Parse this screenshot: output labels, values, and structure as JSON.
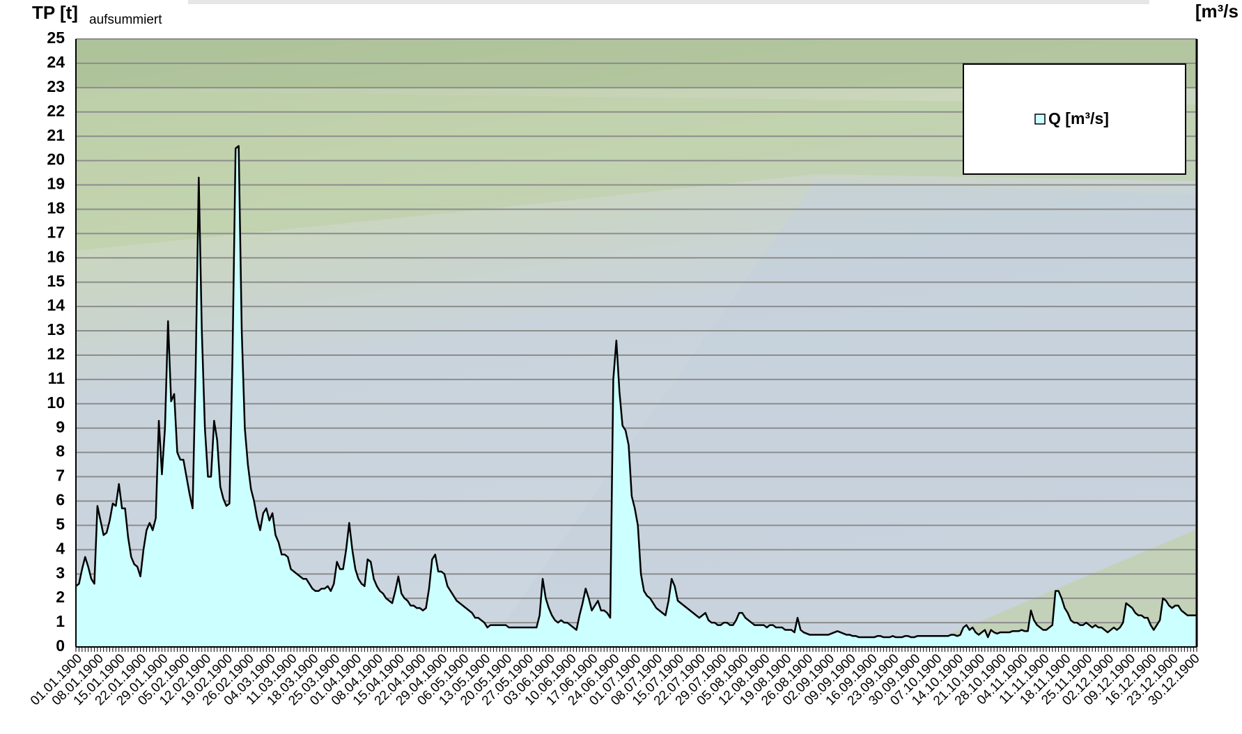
{
  "chart_data": {
    "type": "area",
    "y_label": "TP [t]",
    "y_label_sub": "aufsummiert",
    "y2_label": "[m³/s",
    "categories": [
      "01.01.1900",
      null,
      null,
      null,
      null,
      null,
      null,
      "08.01.1900",
      null,
      null,
      null,
      null,
      null,
      null,
      "15.01.1900",
      null,
      null,
      null,
      null,
      null,
      null,
      "22.01.1900",
      null,
      null,
      null,
      null,
      null,
      null,
      "29.01.1900",
      null,
      null,
      null,
      null,
      null,
      null,
      "05.02.1900",
      null,
      null,
      null,
      null,
      null,
      null,
      "12.02.1900",
      null,
      null,
      null,
      null,
      null,
      null,
      "19.02.1900",
      null,
      null,
      null,
      null,
      null,
      null,
      "26.02.1900",
      null,
      null,
      null,
      null,
      null,
      null,
      "04.03.1900",
      null,
      null,
      null,
      null,
      null,
      null,
      "11.03.1900",
      null,
      null,
      null,
      null,
      null,
      null,
      "18.03.1900",
      null,
      null,
      null,
      null,
      null,
      null,
      "25.03.1900",
      null,
      null,
      null,
      null,
      null,
      null,
      "01.04.1900",
      null,
      null,
      null,
      null,
      null,
      null,
      "08.04.1900",
      null,
      null,
      null,
      null,
      null,
      null,
      "15.04.1900",
      null,
      null,
      null,
      null,
      null,
      null,
      "22.04.1900",
      null,
      null,
      null,
      null,
      null,
      null,
      "29.04.1900",
      null,
      null,
      null,
      null,
      null,
      null,
      "06.05.1900",
      null,
      null,
      null,
      null,
      null,
      null,
      "13.05.1900",
      null,
      null,
      null,
      null,
      null,
      null,
      "20.05.1900",
      null,
      null,
      null,
      null,
      null,
      null,
      "27.05.1900",
      null,
      null,
      null,
      null,
      null,
      null,
      "03.06.1900",
      null,
      null,
      null,
      null,
      null,
      null,
      "10.06.1900",
      null,
      null,
      null,
      null,
      null,
      null,
      "17.06.1900",
      null,
      null,
      null,
      null,
      null,
      null,
      "24.06.1900",
      null,
      null,
      null,
      null,
      null,
      null,
      "01.07.1900",
      null,
      null,
      null,
      null,
      null,
      null,
      "08.07.1900",
      null,
      null,
      null,
      null,
      null,
      null,
      "15.07.1900",
      null,
      null,
      null,
      null,
      null,
      null,
      "22.07.1900",
      null,
      null,
      null,
      null,
      null,
      null,
      "29.07.1900",
      null,
      null,
      null,
      null,
      null,
      null,
      "05.08.1900",
      null,
      null,
      null,
      null,
      null,
      null,
      "12.08.1900",
      null,
      null,
      null,
      null,
      null,
      null,
      "19.08.1900",
      null,
      null,
      null,
      null,
      null,
      null,
      "26.08.1900",
      null,
      null,
      null,
      null,
      null,
      null,
      "02.09.1900",
      null,
      null,
      null,
      null,
      null,
      null,
      "09.09.1900",
      null,
      null,
      null,
      null,
      null,
      null,
      "16.09.1900",
      null,
      null,
      null,
      null,
      null,
      null,
      "23.09.1900",
      null,
      null,
      null,
      null,
      null,
      null,
      "30.09.1900",
      null,
      null,
      null,
      null,
      null,
      null,
      "07.10.1900",
      null,
      null,
      null,
      null,
      null,
      null,
      "14.10.1900",
      null,
      null,
      null,
      null,
      null,
      null,
      "21.10.1900",
      null,
      null,
      null,
      null,
      null,
      null,
      "28.10.1900",
      null,
      null,
      null,
      null,
      null,
      null,
      "04.11.1900",
      null,
      null,
      null,
      null,
      null,
      null,
      "11.11.1900",
      null,
      null,
      null,
      null,
      null,
      null,
      "18.11.1900",
      null,
      null,
      null,
      null,
      null,
      null,
      "25.11.1900",
      null,
      null,
      null,
      null,
      null,
      null,
      "02.12.1900",
      null,
      null,
      null,
      null,
      null,
      null,
      "09.12.1900",
      null,
      null,
      null,
      null,
      null,
      null,
      "16.12.1900",
      null,
      null,
      null,
      null,
      null,
      null,
      "23.12.1900",
      null,
      null,
      null,
      null,
      null,
      null,
      "30.12.1900",
      null
    ],
    "series": [
      {
        "name": "Q [m³/s]",
        "color": "#ccffff",
        "values": [
          2.5,
          2.6,
          3.2,
          3.7,
          3.3,
          2.8,
          2.6,
          5.8,
          5.2,
          4.6,
          4.7,
          5.2,
          5.9,
          5.8,
          6.7,
          5.7,
          5.7,
          4.5,
          3.7,
          3.4,
          3.3,
          2.9,
          4.0,
          4.8,
          5.1,
          4.8,
          5.3,
          9.3,
          7.1,
          9.0,
          13.4,
          10.1,
          10.4,
          8.0,
          7.7,
          7.7,
          7.0,
          6.3,
          5.7,
          11.5,
          19.3,
          13.0,
          9.0,
          7.0,
          7.0,
          9.3,
          8.5,
          6.6,
          6.1,
          5.8,
          5.9,
          12.0,
          20.5,
          20.6,
          13.0,
          9.0,
          7.5,
          6.5,
          6.0,
          5.3,
          4.8,
          5.5,
          5.7,
          5.2,
          5.5,
          4.6,
          4.3,
          3.8,
          3.8,
          3.7,
          3.2,
          3.1,
          3.0,
          2.9,
          2.8,
          2.8,
          2.6,
          2.4,
          2.3,
          2.3,
          2.4,
          2.4,
          2.5,
          2.3,
          2.6,
          3.5,
          3.2,
          3.2,
          4.0,
          5.1,
          4.0,
          3.2,
          2.8,
          2.6,
          2.5,
          3.6,
          3.5,
          2.8,
          2.5,
          2.3,
          2.2,
          2.0,
          1.9,
          1.8,
          2.3,
          2.9,
          2.2,
          2.0,
          1.9,
          1.7,
          1.7,
          1.6,
          1.6,
          1.5,
          1.6,
          2.4,
          3.6,
          3.8,
          3.1,
          3.1,
          3.0,
          2.5,
          2.3,
          2.1,
          1.9,
          1.8,
          1.7,
          1.6,
          1.5,
          1.4,
          1.2,
          1.2,
          1.1,
          1.0,
          0.8,
          0.9,
          0.9,
          0.9,
          0.9,
          0.9,
          0.9,
          0.8,
          0.8,
          0.8,
          0.8,
          0.8,
          0.8,
          0.8,
          0.8,
          0.8,
          0.8,
          1.3,
          2.8,
          2.0,
          1.6,
          1.3,
          1.1,
          1.0,
          1.1,
          1.0,
          1.0,
          0.9,
          0.8,
          0.7,
          1.3,
          1.8,
          2.4,
          2.0,
          1.5,
          1.7,
          1.9,
          1.5,
          1.5,
          1.4,
          1.2,
          11.0,
          12.6,
          10.5,
          9.1,
          8.9,
          8.3,
          6.2,
          5.7,
          5.0,
          3.0,
          2.3,
          2.1,
          2.0,
          1.8,
          1.6,
          1.5,
          1.4,
          1.3,
          1.9,
          2.8,
          2.5,
          1.9,
          1.8,
          1.7,
          1.6,
          1.5,
          1.4,
          1.3,
          1.2,
          1.3,
          1.4,
          1.1,
          1.0,
          1.0,
          0.9,
          0.9,
          1.0,
          1.0,
          0.9,
          0.9,
          1.1,
          1.4,
          1.4,
          1.2,
          1.1,
          1.0,
          0.9,
          0.9,
          0.9,
          0.9,
          0.8,
          0.9,
          0.9,
          0.8,
          0.8,
          0.8,
          0.7,
          0.7,
          0.7,
          0.6,
          1.2,
          0.7,
          0.6,
          0.55,
          0.5,
          0.5,
          0.5,
          0.5,
          0.5,
          0.5,
          0.5,
          0.55,
          0.6,
          0.65,
          0.6,
          0.55,
          0.5,
          0.5,
          0.45,
          0.45,
          0.4,
          0.4,
          0.4,
          0.4,
          0.4,
          0.4,
          0.45,
          0.45,
          0.4,
          0.4,
          0.4,
          0.45,
          0.4,
          0.4,
          0.4,
          0.45,
          0.45,
          0.4,
          0.4,
          0.45,
          0.45,
          0.45,
          0.45,
          0.45,
          0.45,
          0.45,
          0.45,
          0.45,
          0.45,
          0.45,
          0.5,
          0.5,
          0.45,
          0.5,
          0.8,
          0.9,
          0.7,
          0.8,
          0.6,
          0.5,
          0.6,
          0.7,
          0.4,
          0.7,
          0.6,
          0.55,
          0.6,
          0.6,
          0.6,
          0.6,
          0.65,
          0.65,
          0.65,
          0.7,
          0.65,
          0.65,
          1.5,
          1.1,
          0.9,
          0.8,
          0.7,
          0.7,
          0.8,
          0.9,
          2.3,
          2.3,
          2.0,
          1.6,
          1.4,
          1.1,
          1.0,
          1.0,
          0.9,
          0.9,
          1.0,
          0.9,
          0.8,
          0.9,
          0.8,
          0.8,
          0.7,
          0.6,
          0.7,
          0.8,
          0.7,
          0.8,
          1.0,
          1.8,
          1.7,
          1.6,
          1.4,
          1.3,
          1.3,
          1.2,
          1.2,
          0.9,
          0.7,
          0.9,
          1.1,
          2.0,
          1.9,
          1.7,
          1.6,
          1.7,
          1.7,
          1.5,
          1.4,
          1.3,
          1.3,
          1.3,
          1.3
        ]
      }
    ],
    "ylim": [
      0,
      25
    ],
    "yticks": [
      0,
      1,
      2,
      3,
      4,
      5,
      6,
      7,
      8,
      9,
      10,
      11,
      12,
      13,
      14,
      15,
      16,
      17,
      18,
      19,
      20,
      21,
      22,
      23,
      24,
      25
    ],
    "grid": true,
    "legend": "upper right"
  }
}
